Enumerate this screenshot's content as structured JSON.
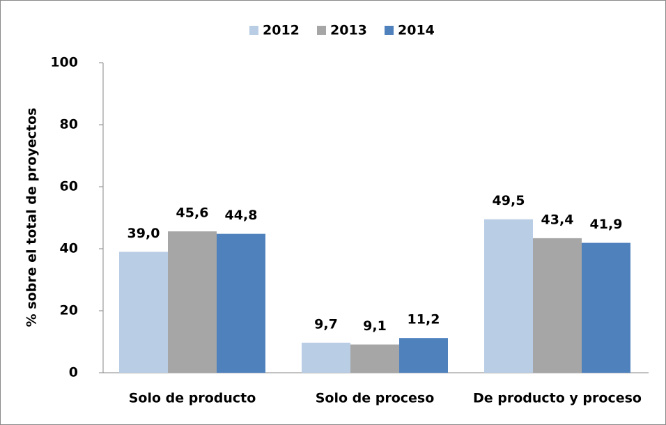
{
  "chart_data": {
    "type": "bar",
    "categories": [
      "Solo de producto",
      "Solo de proceso",
      "De producto y proceso"
    ],
    "series": [
      {
        "name": "2012",
        "color": "#b9cde5",
        "values": [
          39.0,
          9.7,
          49.5
        ],
        "value_labels": [
          "39,0",
          "9,7",
          "49,5"
        ]
      },
      {
        "name": "2013",
        "color": "#a6a6a6",
        "values": [
          45.6,
          9.1,
          43.4
        ],
        "value_labels": [
          "45,6",
          "9,1",
          "43,4"
        ]
      },
      {
        "name": "2014",
        "color": "#4f81bd",
        "values": [
          44.8,
          11.2,
          41.9
        ],
        "value_labels": [
          "44,8",
          "11,2",
          "41,9"
        ]
      }
    ],
    "y_label": "% sobre el total de proyectos",
    "ylim": [
      0,
      100
    ],
    "yticks": [
      0,
      20,
      40,
      60,
      80,
      100
    ],
    "grid": false,
    "legend": "top"
  }
}
